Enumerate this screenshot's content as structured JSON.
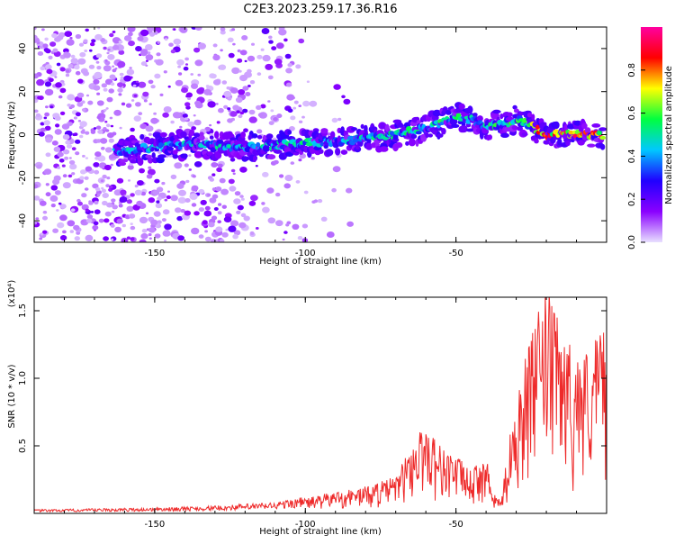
{
  "chart_data": [
    {
      "type": "heatmap",
      "title": "C2E3.2023.259.17.36.R16",
      "xlabel": "Height of straight line (km)",
      "ylabel": "Frequency (Hz)",
      "xlim": [
        -190,
        0
      ],
      "ylim": [
        -50,
        50
      ],
      "x_ticks": [
        -150,
        -100,
        -50
      ],
      "y_ticks": [
        -40,
        -20,
        0,
        20,
        40
      ],
      "colorbar": {
        "label": "Normalized spectral amplitude",
        "range": [
          0.0,
          1.0
        ],
        "ticks": [
          0.0,
          0.2,
          0.4,
          0.6,
          0.8
        ],
        "colormap": [
          "#e8e0ff",
          "#8a00ff",
          "#2000ff",
          "#00c8ff",
          "#00ff40",
          "#ffff00",
          "#ff0000",
          "#ff00a0"
        ]
      },
      "ridge": {
        "x": [
          -163,
          -150,
          -140,
          -130,
          -120,
          -110,
          -100,
          -90,
          -80,
          -70,
          -60,
          -50,
          -45,
          -40,
          -35,
          -30,
          -25,
          -20,
          -15,
          -10,
          -5,
          -1
        ],
        "y": [
          -8,
          -6,
          -5,
          -5,
          -6,
          -5,
          -4,
          -3,
          -2,
          0,
          3,
          8,
          7,
          4,
          5,
          7,
          4,
          0,
          0,
          0,
          0,
          0
        ],
        "peak_amplitude": 0.95
      },
      "noise_region_x": [
        -190,
        -100
      ]
    },
    {
      "type": "line",
      "xlabel": "Height of straight line (km)",
      "ylabel": "SNR (10 * v/v)",
      "y_multiplier": "(x10⁴)",
      "xlim": [
        -190,
        0
      ],
      "ylim": [
        0,
        1.6
      ],
      "x_ticks": [
        -150,
        -100,
        -50
      ],
      "y_ticks": [
        0.5,
        1.0,
        1.5
      ],
      "y_tick_labels": [
        "0.5",
        "1.0",
        "1.5"
      ],
      "color": "#ee2a2a",
      "envelope": {
        "x": [
          -190,
          -150,
          -130,
          -110,
          -100,
          -90,
          -80,
          -70,
          -65,
          -60,
          -55,
          -50,
          -45,
          -40,
          -38,
          -35,
          -30,
          -25,
          -20,
          -15,
          -10,
          -5,
          -1
        ],
        "y": [
          0.02,
          0.03,
          0.04,
          0.06,
          0.09,
          0.13,
          0.16,
          0.22,
          0.4,
          0.55,
          0.4,
          0.35,
          0.25,
          0.35,
          0.12,
          0.08,
          0.75,
          1.05,
          1.35,
          1.1,
          0.95,
          1.0,
          1.15
        ]
      }
    }
  ]
}
